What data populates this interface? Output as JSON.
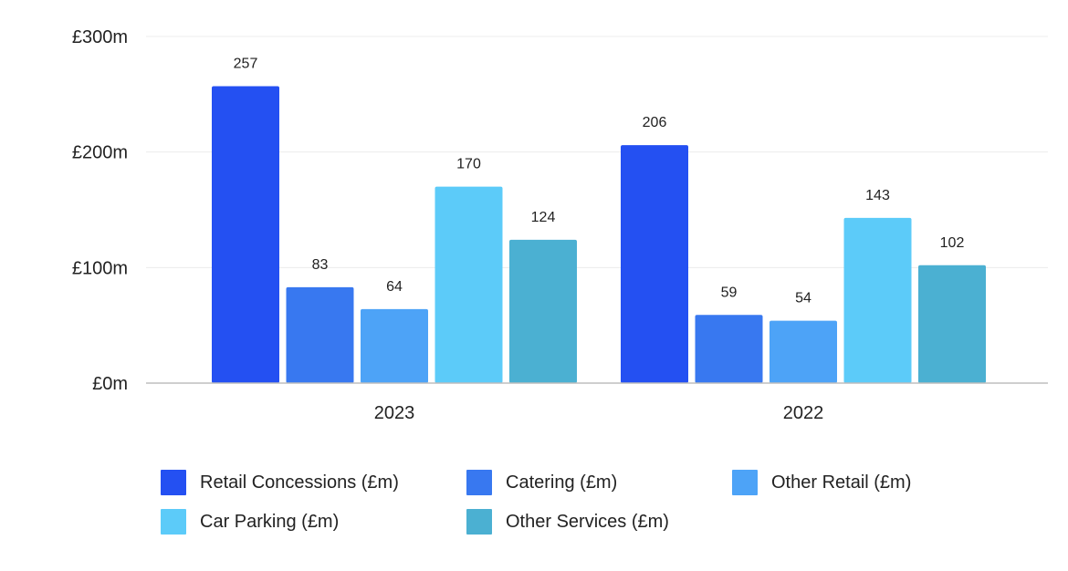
{
  "chart_data": {
    "type": "bar",
    "title": "",
    "xlabel": "",
    "ylabel": "",
    "ylim": [
      0,
      300
    ],
    "yticks": [
      {
        "value": 0,
        "label": "£0m"
      },
      {
        "value": 100,
        "label": "£100m"
      },
      {
        "value": 200,
        "label": "£200m"
      },
      {
        "value": 300,
        "label": "£300m"
      }
    ],
    "categories": [
      "2023",
      "2022"
    ],
    "grid": true,
    "legend_position": "bottom",
    "series": [
      {
        "name": "Retail Concessions (£m)",
        "color": "#2450F2",
        "values": [
          257,
          206
        ],
        "labels": [
          "257",
          "206"
        ]
      },
      {
        "name": "Catering (£m)",
        "color": "#3878F0",
        "values": [
          83,
          59
        ],
        "labels": [
          "83",
          "59"
        ]
      },
      {
        "name": "Other Retail (£m)",
        "color": "#4DA3F7",
        "values": [
          64,
          54
        ],
        "labels": [
          "64",
          "54"
        ]
      },
      {
        "name": "Car Parking (£m)",
        "color": "#5CCBF9",
        "values": [
          170,
          143
        ],
        "labels": [
          "170",
          "143"
        ]
      },
      {
        "name": "Other Services (£m)",
        "color": "#4BB0D2",
        "values": [
          124,
          102
        ],
        "labels": [
          "124",
          "102"
        ]
      }
    ]
  }
}
